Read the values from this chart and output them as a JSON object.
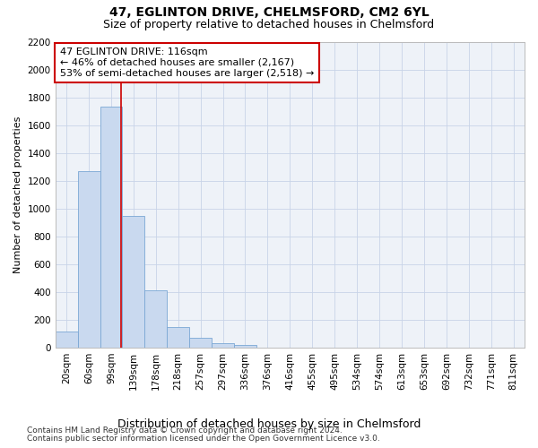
{
  "title1": "47, EGLINTON DRIVE, CHELMSFORD, CM2 6YL",
  "title2": "Size of property relative to detached houses in Chelmsford",
  "xlabel": "Distribution of detached houses by size in Chelmsford",
  "ylabel": "Number of detached properties",
  "categories": [
    "20sqm",
    "60sqm",
    "99sqm",
    "139sqm",
    "178sqm",
    "218sqm",
    "257sqm",
    "297sqm",
    "336sqm",
    "376sqm",
    "416sqm",
    "455sqm",
    "495sqm",
    "534sqm",
    "574sqm",
    "613sqm",
    "653sqm",
    "692sqm",
    "732sqm",
    "771sqm",
    "811sqm"
  ],
  "values": [
    115,
    1270,
    1730,
    950,
    415,
    150,
    70,
    35,
    20,
    0,
    0,
    0,
    0,
    0,
    0,
    0,
    0,
    0,
    0,
    0,
    0
  ],
  "bar_color": "#c9d9ef",
  "bar_edge_color": "#7ba7d4",
  "vline_color": "#cc0000",
  "vline_x": 2.44,
  "annotation_line1": "47 EGLINTON DRIVE: 116sqm",
  "annotation_line2": "← 46% of detached houses are smaller (2,167)",
  "annotation_line3": "53% of semi-detached houses are larger (2,518) →",
  "annotation_box_color": "#ffffff",
  "annotation_box_edge": "#cc0000",
  "ylim": [
    0,
    2200
  ],
  "yticks": [
    0,
    200,
    400,
    600,
    800,
    1000,
    1200,
    1400,
    1600,
    1800,
    2000,
    2200
  ],
  "grid_color": "#c8d4e8",
  "axes_bg_color": "#eef2f8",
  "footer1": "Contains HM Land Registry data © Crown copyright and database right 2024.",
  "footer2": "Contains public sector information licensed under the Open Government Licence v3.0.",
  "title1_fontsize": 10,
  "title2_fontsize": 9,
  "xlabel_fontsize": 9,
  "ylabel_fontsize": 8,
  "tick_fontsize": 7.5,
  "annotation_fontsize": 8,
  "footer_fontsize": 6.5
}
